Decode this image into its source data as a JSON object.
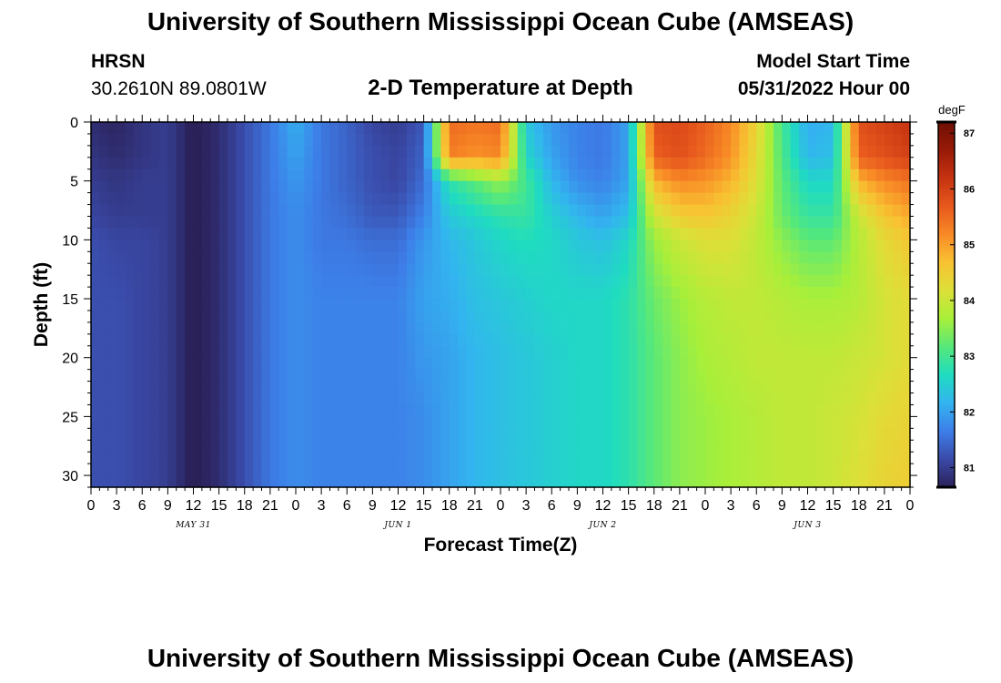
{
  "page": {
    "title": "University of Southern Mississippi Ocean Cube (AMSEAS)",
    "title_bottom": "University of Southern Mississippi Ocean Cube (AMSEAS)",
    "station_name": "HRSN",
    "station_coords": "30.2610N  89.0801W",
    "chart_title": "2-D Temperature at Depth",
    "model_start_label": "Model Start Time",
    "model_start_value": "05/31/2022 Hour 00"
  },
  "chart_data": {
    "type": "heatmap",
    "title": "2-D Temperature at Depth",
    "xlabel": "Forecast Time(Z)",
    "ylabel": "Depth (ft)",
    "x_unit": "hours since 05/31/2022 00Z",
    "xlim": [
      0,
      96
    ],
    "ylim": [
      0,
      31
    ],
    "x_ticks": [
      0,
      3,
      6,
      9,
      12,
      15,
      18,
      21,
      24,
      27,
      30,
      33,
      36,
      39,
      42,
      45,
      48,
      51,
      54,
      57,
      60,
      63,
      66,
      69,
      72,
      75,
      78,
      81,
      84,
      87,
      90,
      93,
      96
    ],
    "x_tick_labels": [
      "0",
      "3",
      "6",
      "9",
      "12",
      "15",
      "18",
      "21",
      "0",
      "3",
      "6",
      "9",
      "12",
      "15",
      "18",
      "21",
      "0",
      "3",
      "6",
      "9",
      "12",
      "15",
      "18",
      "21",
      "0",
      "3",
      "6",
      "9",
      "12",
      "15",
      "18",
      "21",
      "0"
    ],
    "date_labels": [
      {
        "x": 12,
        "label": "MAY 31"
      },
      {
        "x": 36,
        "label": "JUN 1"
      },
      {
        "x": 60,
        "label": "JUN 2"
      },
      {
        "x": 84,
        "label": "JUN 3"
      }
    ],
    "y_ticks": [
      0,
      5,
      10,
      15,
      20,
      25,
      30
    ],
    "y_tick_labels": [
      "0",
      "5",
      "10",
      "15",
      "20",
      "25",
      "30"
    ],
    "colorbar": {
      "unit": "degF",
      "range": [
        80.65,
        87.2
      ],
      "ticks": [
        81,
        82,
        83,
        84,
        85,
        86,
        87
      ],
      "tick_labels": [
        "81",
        "82",
        "83",
        "84",
        "85",
        "86",
        "87"
      ],
      "colormap": [
        "#2b2159",
        "#3a4aa8",
        "#3d7ee8",
        "#33b4f0",
        "#1fdcc0",
        "#56e87a",
        "#a8ef3a",
        "#dce038",
        "#f8c232",
        "#f88a26",
        "#e7581d",
        "#c63311",
        "#981a07",
        "#6e0f03"
      ]
    },
    "depth_levels_ft": [
      0,
      3,
      5,
      8,
      10,
      15,
      20,
      25,
      31
    ],
    "time_hours": [
      0,
      3,
      6,
      9,
      12,
      15,
      18,
      21,
      24,
      27,
      30,
      33,
      36,
      39,
      42,
      45,
      48,
      51,
      54,
      57,
      60,
      63,
      66,
      69,
      72,
      75,
      78,
      81,
      84,
      87,
      90,
      93,
      96
    ],
    "temperature_degF": [
      [
        80.8,
        80.7,
        80.9,
        81.0,
        80.6,
        80.8,
        81.2,
        81.6,
        82.1,
        81.6,
        81.4,
        81.1,
        81.0,
        81.3,
        85.5,
        85.4,
        85.5,
        82.4,
        81.9,
        81.7,
        81.6,
        82.0,
        85.8,
        85.9,
        85.6,
        85.2,
        84.4,
        83.0,
        82.1,
        82.2,
        85.8,
        86.0,
        86.2
      ],
      [
        80.9,
        80.8,
        80.9,
        81.0,
        80.6,
        80.8,
        81.2,
        81.6,
        82.0,
        81.6,
        81.4,
        81.2,
        81.1,
        81.4,
        85.3,
        85.1,
        85.2,
        82.6,
        82.0,
        81.7,
        81.6,
        82.0,
        85.6,
        85.8,
        85.5,
        85.1,
        84.3,
        83.1,
        82.2,
        82.3,
        85.6,
        85.8,
        86.0
      ],
      [
        81.0,
        80.9,
        81.0,
        81.0,
        80.6,
        80.8,
        81.2,
        81.6,
        81.9,
        81.6,
        81.4,
        81.2,
        81.1,
        81.5,
        82.8,
        83.2,
        83.6,
        83.0,
        82.2,
        81.8,
        81.7,
        82.0,
        84.8,
        85.2,
        85.1,
        84.8,
        84.2,
        83.2,
        82.6,
        82.6,
        84.8,
        85.2,
        85.4
      ],
      [
        81.1,
        81.0,
        81.0,
        81.0,
        80.6,
        80.8,
        81.2,
        81.6,
        81.8,
        81.6,
        81.5,
        81.3,
        81.3,
        81.7,
        82.4,
        82.6,
        82.8,
        82.9,
        82.5,
        82.2,
        82.0,
        82.3,
        84.0,
        84.5,
        84.6,
        84.4,
        84.0,
        83.3,
        82.9,
        82.9,
        84.0,
        84.6,
        84.9
      ],
      [
        81.2,
        81.1,
        81.1,
        81.0,
        80.6,
        80.8,
        81.2,
        81.6,
        81.8,
        81.6,
        81.6,
        81.5,
        81.5,
        81.9,
        82.2,
        82.4,
        82.6,
        82.7,
        82.6,
        82.4,
        82.3,
        82.6,
        83.6,
        84.0,
        84.2,
        84.2,
        83.9,
        83.5,
        83.2,
        83.2,
        83.8,
        84.3,
        84.6
      ],
      [
        81.2,
        81.2,
        81.1,
        81.0,
        80.6,
        80.8,
        81.2,
        81.6,
        81.8,
        81.7,
        81.7,
        81.7,
        81.7,
        82.0,
        82.1,
        82.3,
        82.4,
        82.5,
        82.6,
        82.6,
        82.6,
        82.8,
        83.3,
        83.6,
        83.8,
        83.9,
        83.9,
        83.8,
        83.7,
        83.7,
        83.8,
        84.1,
        84.3
      ],
      [
        81.2,
        81.2,
        81.1,
        81.0,
        80.6,
        80.8,
        81.2,
        81.6,
        81.8,
        81.7,
        81.7,
        81.7,
        81.7,
        81.9,
        82.0,
        82.2,
        82.3,
        82.4,
        82.5,
        82.6,
        82.6,
        82.8,
        83.2,
        83.5,
        83.7,
        83.8,
        83.9,
        83.9,
        83.9,
        83.9,
        84.0,
        84.1,
        84.3
      ],
      [
        81.2,
        81.2,
        81.1,
        81.0,
        80.6,
        80.8,
        81.2,
        81.6,
        81.8,
        81.7,
        81.7,
        81.7,
        81.7,
        81.8,
        82.0,
        82.2,
        82.3,
        82.4,
        82.5,
        82.6,
        82.6,
        82.8,
        83.2,
        83.5,
        83.6,
        83.7,
        83.8,
        83.9,
        83.9,
        84.0,
        84.1,
        84.3,
        84.4
      ],
      [
        81.2,
        81.2,
        81.1,
        81.0,
        80.6,
        80.8,
        81.2,
        81.6,
        81.8,
        81.7,
        81.7,
        81.7,
        81.7,
        81.8,
        82.0,
        82.2,
        82.3,
        82.4,
        82.5,
        82.6,
        82.6,
        82.8,
        83.2,
        83.5,
        83.6,
        83.7,
        83.8,
        83.9,
        83.9,
        84.0,
        84.2,
        84.4,
        84.5
      ]
    ]
  }
}
